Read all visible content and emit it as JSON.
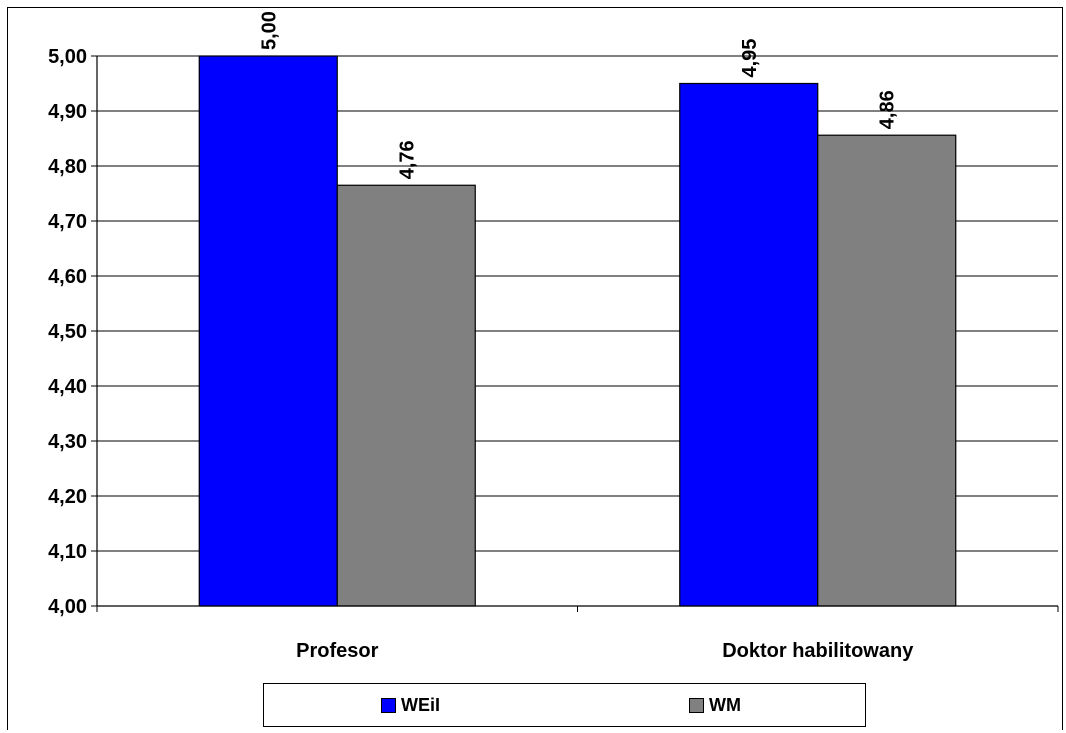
{
  "chart_data": {
    "type": "bar",
    "categories": [
      "Profesor",
      "Doktor habilitowany"
    ],
    "series": [
      {
        "name": "WEiI",
        "values": [
          5.0,
          4.95
        ],
        "labels": [
          "5,00",
          "4,95"
        ],
        "color": "#0000FF"
      },
      {
        "name": "WM",
        "values": [
          4.765,
          4.856
        ],
        "labels": [
          "4,76",
          "4,86"
        ],
        "color": "#808080"
      }
    ],
    "ylim": [
      4.0,
      5.0
    ],
    "yticks": [
      "4,00",
      "4,10",
      "4,20",
      "4,30",
      "4,40",
      "4,50",
      "4,60",
      "4,70",
      "4,80",
      "4,90",
      "5,00"
    ],
    "grid": true,
    "legend_position": "bottom"
  }
}
